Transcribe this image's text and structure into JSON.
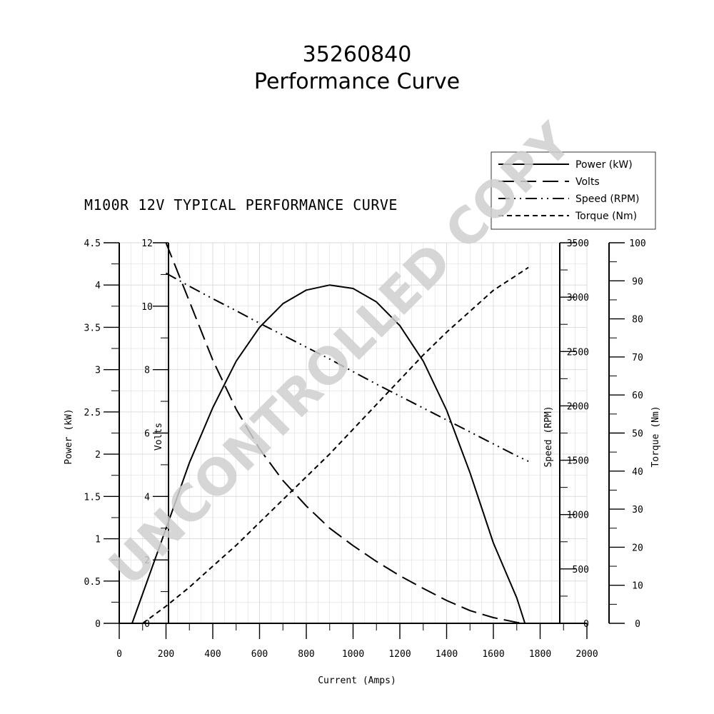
{
  "header": {
    "part_number": "35260840",
    "subtitle": "Performance Curve"
  },
  "watermark": "UNCONTROLLED COPY",
  "colors": {
    "ink": "#000000",
    "grid": "#d8d8d8",
    "watermark": "#cfcfcf",
    "background": "#ffffff"
  },
  "chart_data": {
    "type": "line",
    "title": "M100R 12V TYPICAL PERFORMANCE CURVE",
    "xlabel": "Current (Amps)",
    "xlim": [
      0,
      2000
    ],
    "x_ticks": [
      "0",
      "200",
      "400",
      "600",
      "800",
      "1000",
      "1200",
      "1400",
      "1600",
      "1800",
      "2000"
    ],
    "grid": true,
    "legend_position": "top-right",
    "axes": [
      {
        "id": "power",
        "label": "Power (kW)",
        "side": "left-outer",
        "range": [
          0,
          4.5
        ],
        "ticks": [
          "0",
          "0.5",
          "1",
          "1.5",
          "2",
          "2.5",
          "3",
          "3.5",
          "4",
          "4.5"
        ]
      },
      {
        "id": "volts",
        "label": "Volts",
        "side": "left-inner",
        "range": [
          0,
          12
        ],
        "ticks": [
          "0",
          "2",
          "4",
          "6",
          "8",
          "10",
          "12"
        ]
      },
      {
        "id": "speed",
        "label": "Speed (RPM)",
        "side": "right-inner",
        "range": [
          0,
          3500
        ],
        "ticks": [
          "0",
          "500",
          "1000",
          "1500",
          "2000",
          "2500",
          "3000",
          "3500"
        ]
      },
      {
        "id": "torque",
        "label": "Torque (Nm)",
        "side": "right-outer",
        "range": [
          0,
          100
        ],
        "ticks": [
          "0",
          "10",
          "20",
          "30",
          "40",
          "50",
          "60",
          "70",
          "80",
          "90",
          "100"
        ]
      }
    ],
    "series": [
      {
        "name": "Power (kW)",
        "axis": "power",
        "dash": "solid",
        "x": [
          55,
          200,
          300,
          400,
          500,
          600,
          700,
          800,
          900,
          1000,
          1100,
          1200,
          1300,
          1400,
          1500,
          1600,
          1700,
          1735
        ],
        "y": [
          0,
          1.12,
          1.9,
          2.55,
          3.1,
          3.5,
          3.78,
          3.94,
          4.0,
          3.96,
          3.8,
          3.52,
          3.1,
          2.52,
          1.78,
          0.95,
          0.3,
          0
        ]
      },
      {
        "name": "Volts",
        "axis": "volts",
        "dash": "long",
        "x": [
          200,
          300,
          400,
          500,
          600,
          700,
          800,
          900,
          1000,
          1100,
          1200,
          1300,
          1400,
          1500,
          1600,
          1700,
          1735
        ],
        "y": [
          12.0,
          10.15,
          8.3,
          6.75,
          5.5,
          4.5,
          3.7,
          3.0,
          2.45,
          1.95,
          1.5,
          1.1,
          0.72,
          0.4,
          0.18,
          0.03,
          0
        ]
      },
      {
        "name": "Speed (RPM)",
        "axis": "speed",
        "dash": "dash-dot-dot",
        "x": [
          200,
          300,
          400,
          500,
          600,
          700,
          800,
          900,
          1000,
          1100,
          1200,
          1300,
          1400,
          1500,
          1600,
          1700,
          1750
        ],
        "y": [
          3220,
          3100,
          2985,
          2875,
          2760,
          2650,
          2540,
          2430,
          2315,
          2200,
          2090,
          1980,
          1870,
          1760,
          1650,
          1540,
          1490
        ]
      },
      {
        "name": "Torque (Nm)",
        "axis": "torque",
        "dash": "short",
        "x": [
          100,
          200,
          300,
          400,
          500,
          600,
          700,
          800,
          900,
          1000,
          1100,
          1200,
          1300,
          1400,
          1500,
          1600,
          1700,
          1750
        ],
        "y": [
          0,
          4.5,
          9.5,
          15,
          20.5,
          26.5,
          32.5,
          38.5,
          44.5,
          51,
          57.5,
          64,
          70.5,
          76.5,
          82,
          87.5,
          91.5,
          93.5
        ]
      }
    ]
  }
}
